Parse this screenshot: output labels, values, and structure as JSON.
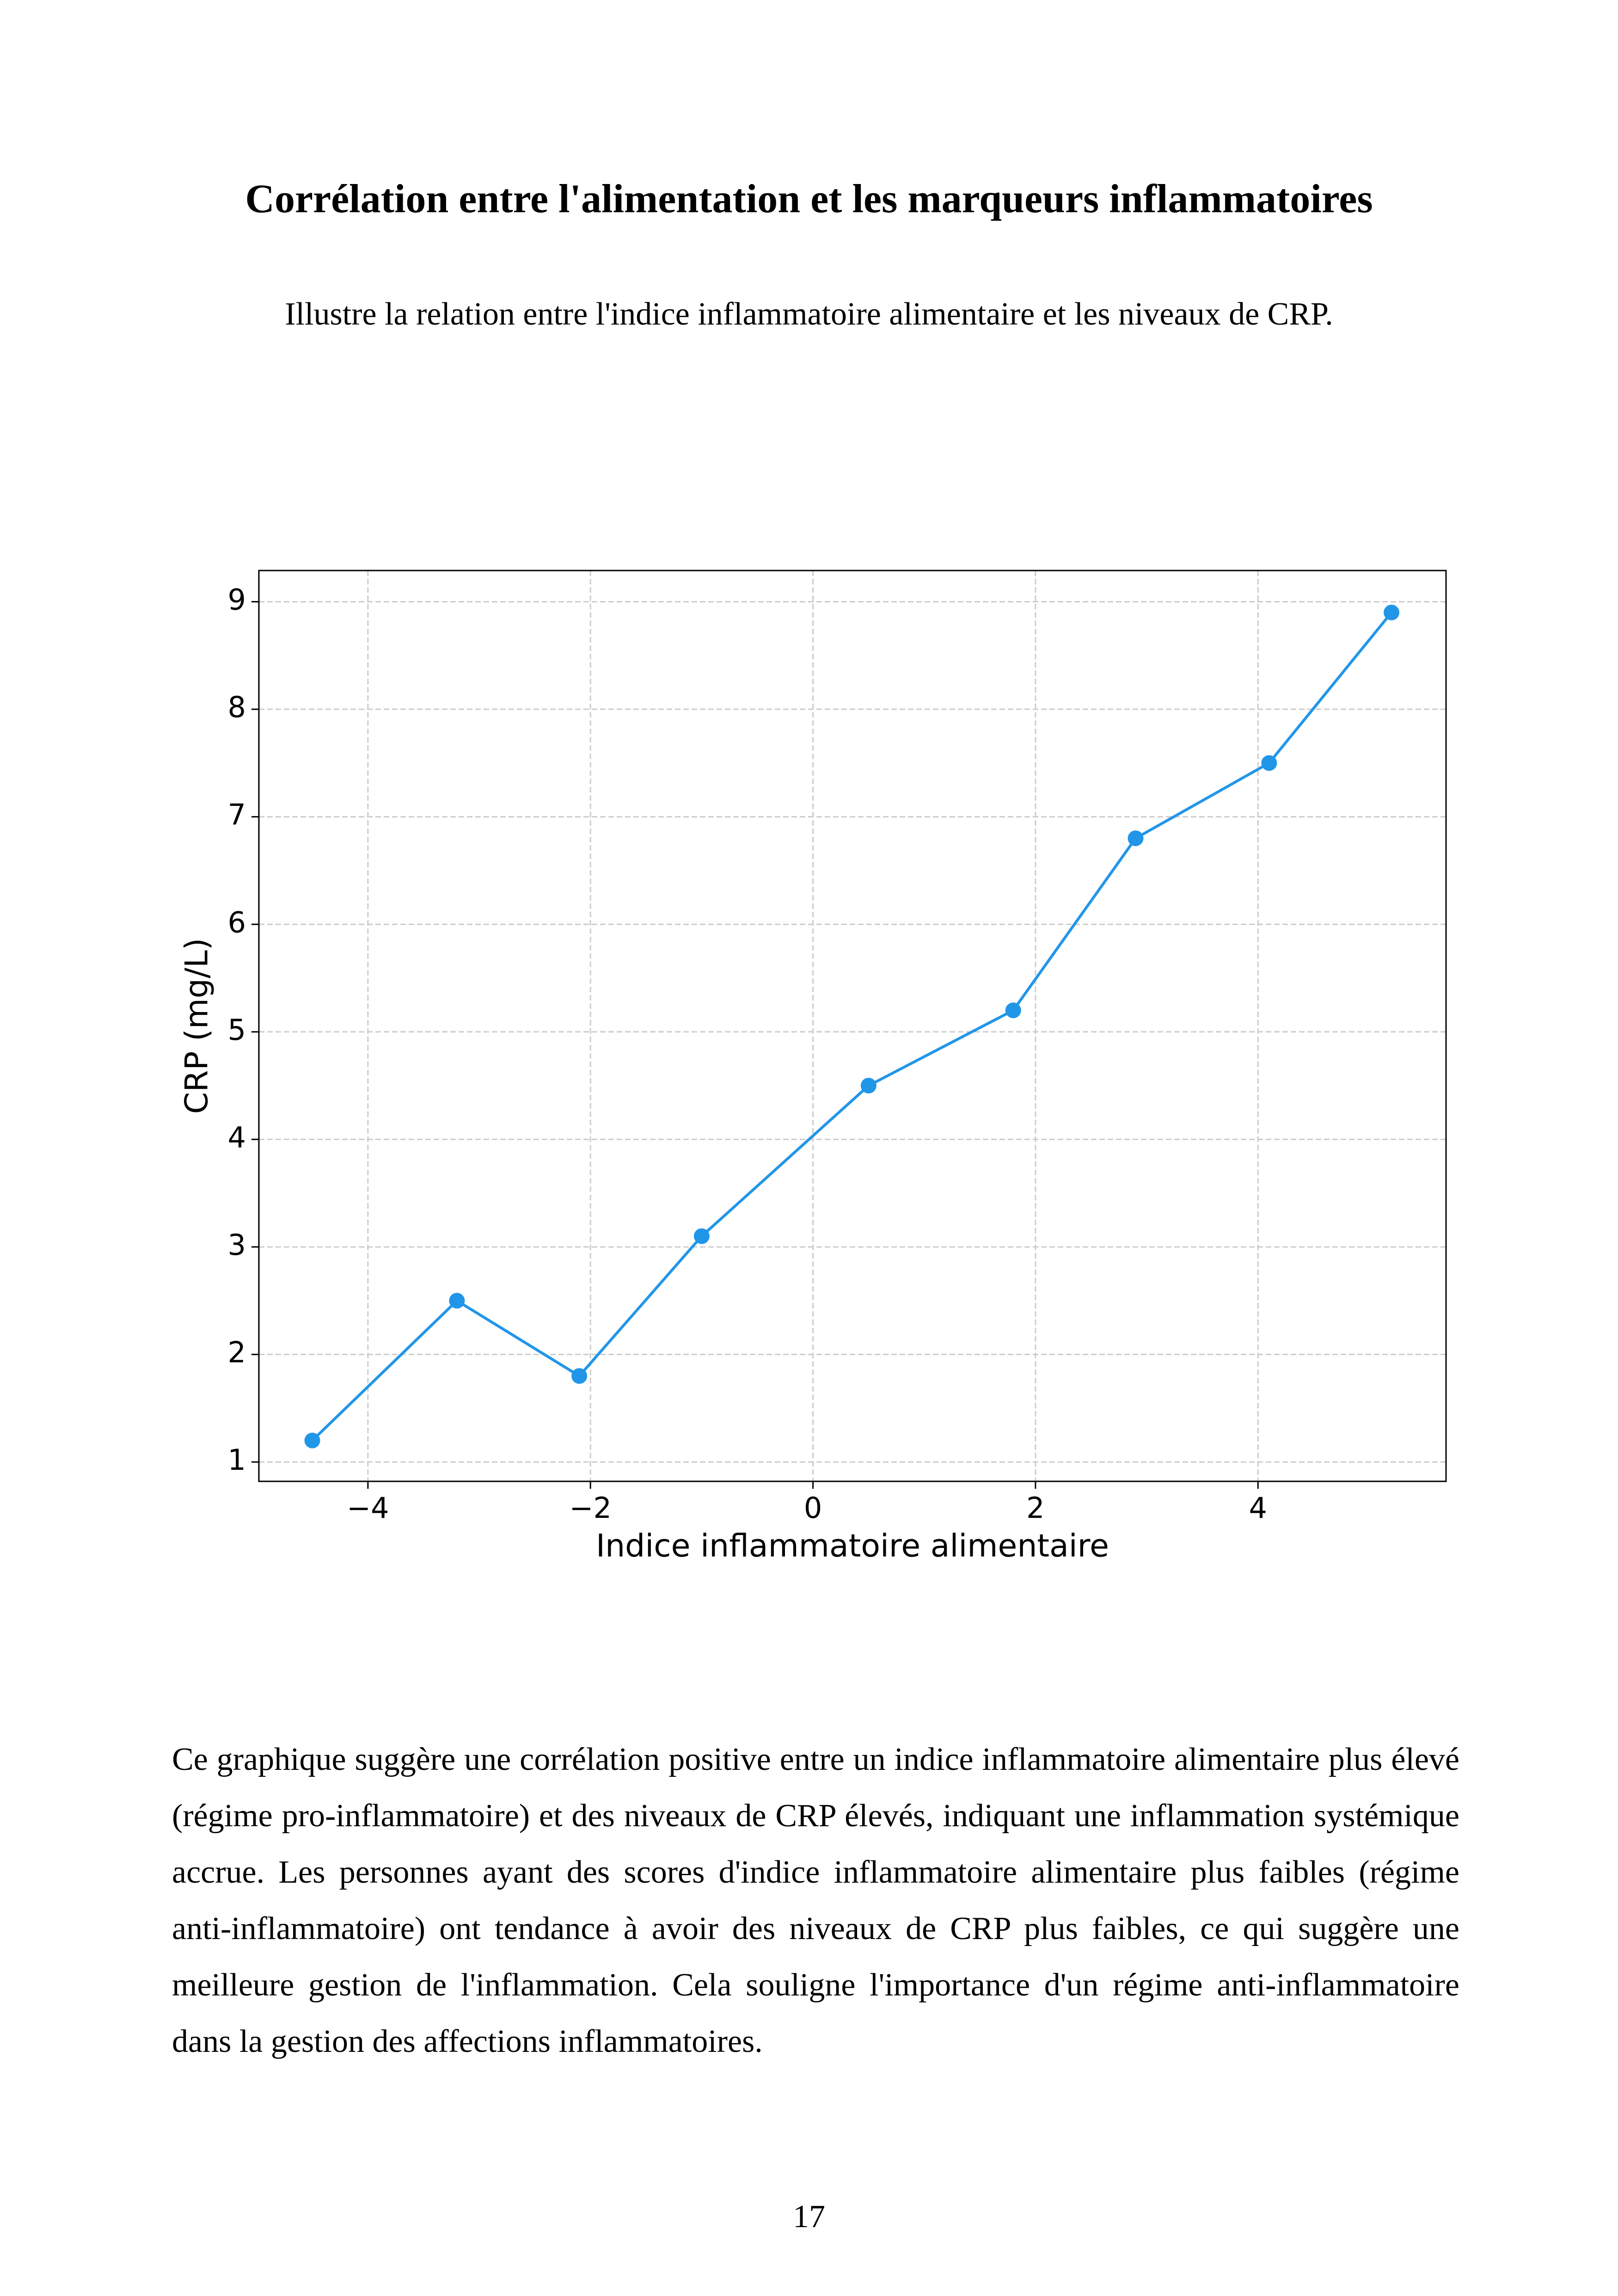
{
  "header": {
    "title": "Corrélation entre l'alimentation et les marqueurs inflammatoires",
    "subtitle": "Illustre la relation entre l'indice inflammatoire alimentaire et les niveaux de CRP."
  },
  "chart_data": {
    "type": "line",
    "x": [
      -4.5,
      -3.2,
      -2.1,
      -1.0,
      0.5,
      1.8,
      2.9,
      4.1,
      5.2
    ],
    "values": [
      1.2,
      2.5,
      1.8,
      3.1,
      4.5,
      5.2,
      6.8,
      7.5,
      8.9
    ],
    "color": "#2196e8",
    "x_label": "Indice inflammatoire alimentaire",
    "y_label": "CRP (mg/L)",
    "xlim": [
      -4.98,
      5.69
    ],
    "ylim": [
      0.82,
      9.29
    ],
    "xticks": [
      {
        "value": -4,
        "label": "−4"
      },
      {
        "value": -2,
        "label": "−2"
      },
      0,
      2,
      4
    ],
    "yticks": [
      1,
      2,
      3,
      4,
      5,
      6,
      7,
      8,
      9
    ],
    "grid": true
  },
  "body": {
    "paragraph": "Ce graphique suggère une corrélation positive entre un indice inflammatoire alimentaire plus élevé (régime pro-inflammatoire) et des niveaux de CRP élevés, indiquant une inflammation systémique accrue. Les personnes ayant des scores d'indice inflammatoire alimentaire plus faibles (régime anti-inflammatoire) ont tendance à avoir des niveaux de CRP plus faibles, ce qui suggère une meilleure gestion de l'inflammation. Cela souligne l'importance d'un régime anti-inflammatoire dans la gestion des affections inflammatoires."
  },
  "footer": {
    "page_number": "17"
  }
}
